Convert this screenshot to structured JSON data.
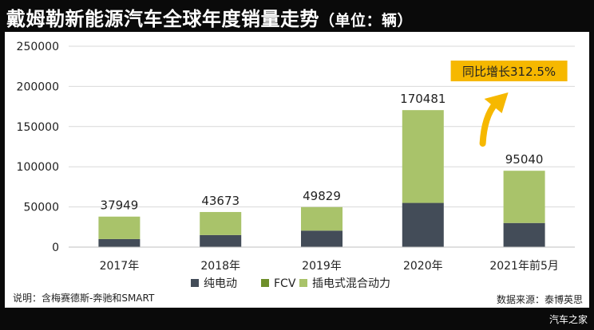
{
  "header": {
    "title": "戴姆勒新能源汽车全球年度销量走势",
    "unit": "（单位：辆）"
  },
  "chart_data": {
    "type": "bar",
    "stacked": true,
    "title": "戴姆勒新能源汽车全球年度销量走势（单位：辆）",
    "categories": [
      "2017年",
      "2018年",
      "2019年",
      "2020年",
      "2021年前5月"
    ],
    "series": [
      {
        "name": "纯电动",
        "color": "#434c58",
        "values": [
          10000,
          15000,
          20500,
          55000,
          30000
        ]
      },
      {
        "name": "FCV",
        "color": "#6e8f2a",
        "values": [
          0,
          0,
          0,
          0,
          0
        ]
      },
      {
        "name": "插电式混合动力",
        "color": "#a9c36a",
        "values": [
          27949,
          28673,
          29329,
          115481,
          65040
        ]
      }
    ],
    "totals": [
      37949,
      43673,
      49829,
      170481,
      95040
    ],
    "total_labels": [
      "37949",
      "43673",
      "49829",
      "170481",
      "95040"
    ],
    "yticks": [
      "0",
      "50000",
      "100000",
      "150000",
      "200000",
      "250000"
    ],
    "ylim": [
      0,
      250000
    ],
    "grid": true,
    "legend_position": "bottom",
    "annotation": {
      "text": "同比增长312.5%",
      "bg_color": "#f6b800",
      "arrow_color": "#f6b800"
    }
  },
  "footer": {
    "note": "说明：含梅赛德斯-奔驰和SMART",
    "source": "数据来源：泰博英思",
    "watermark": "汽车之家"
  }
}
